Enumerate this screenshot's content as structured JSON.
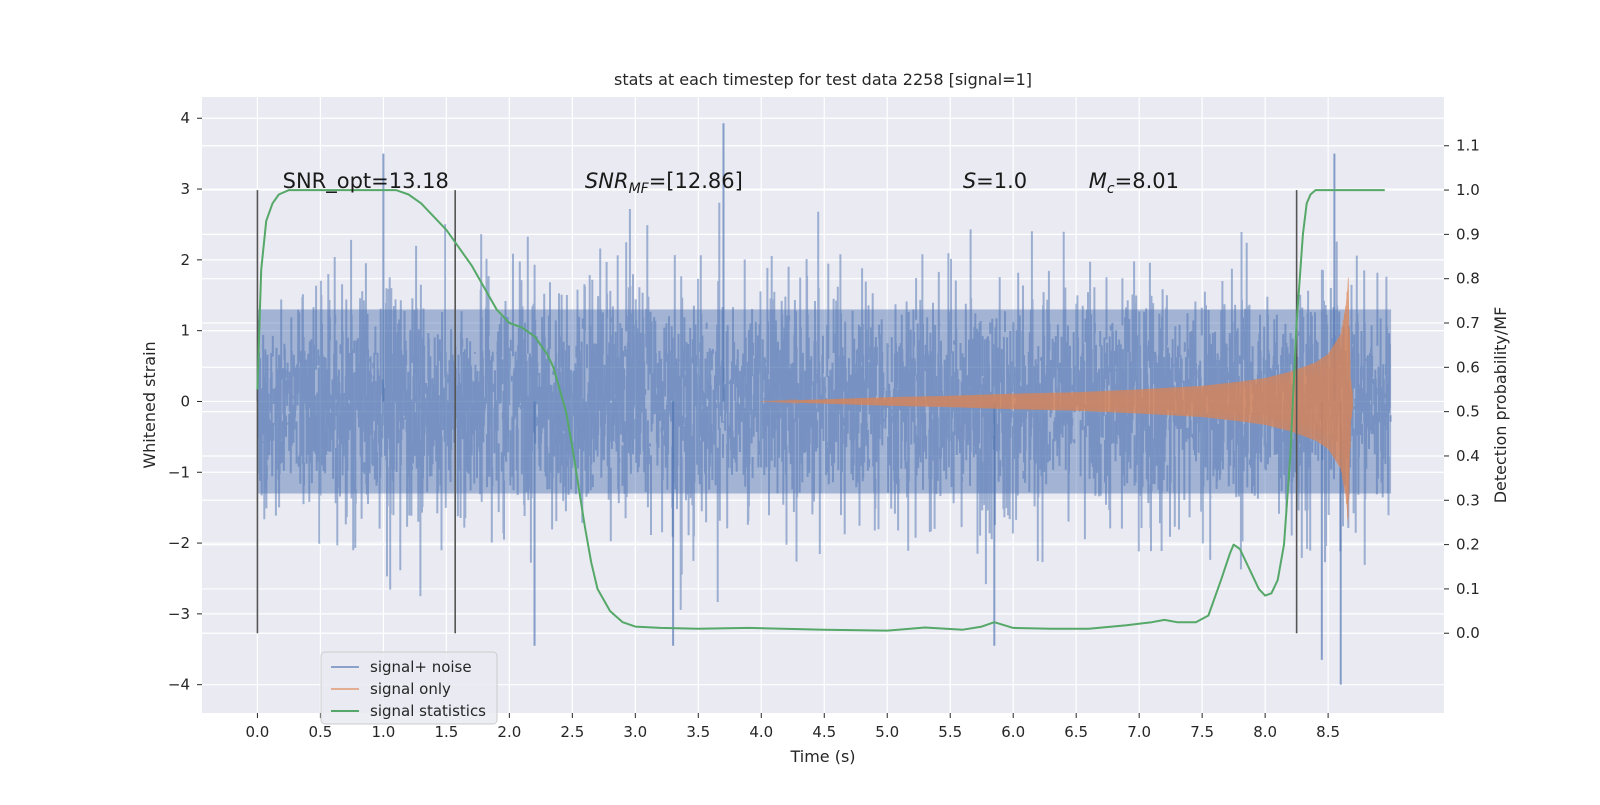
{
  "chart_data": {
    "type": "line",
    "title": "stats at each timestep for test data 2258 [signal=1]",
    "xlabel": "Time (s)",
    "ylabel": "Whitened strain",
    "y2label": "Detection probability/MF",
    "xlim": [
      -0.44,
      9.42
    ],
    "ylim": [
      -4.4,
      4.3
    ],
    "y2lim": [
      -0.18,
      1.21
    ],
    "grid": true,
    "x_ticks": [
      0.0,
      0.5,
      1.0,
      1.5,
      2.0,
      2.5,
      3.0,
      3.5,
      4.0,
      4.5,
      5.0,
      5.5,
      6.0,
      6.5,
      7.0,
      7.5,
      8.0,
      8.5
    ],
    "x_tick_labels": [
      "0.0",
      "0.5",
      "1.0",
      "1.5",
      "2.0",
      "2.5",
      "3.0",
      "3.5",
      "4.0",
      "4.5",
      "5.0",
      "5.5",
      "6.0",
      "6.5",
      "7.0",
      "7.5",
      "8.0",
      "8.5"
    ],
    "y_ticks": [
      4,
      3,
      2,
      1,
      0,
      -1,
      -2,
      -3,
      -4
    ],
    "y_tick_labels": [
      "4",
      "3",
      "2",
      "1",
      "0",
      "−1",
      "−2",
      "−3",
      "−4"
    ],
    "y2_ticks": [
      1.1,
      1.0,
      0.9,
      0.8,
      0.7,
      0.6,
      0.5,
      0.4,
      0.3,
      0.2,
      0.1,
      0.0
    ],
    "y2_tick_labels": [
      "1.1",
      "1.0",
      "0.9",
      "0.8",
      "0.7",
      "0.6",
      "0.5",
      "0.4",
      "0.3",
      "0.2",
      "0.1",
      "0.0"
    ],
    "vertical_markers": [
      0.0,
      1.57,
      8.25
    ],
    "vertical_marker_range": [
      0.0,
      1.0
    ],
    "annotations": [
      {
        "text": "SNR_opt=13.18",
        "x": 0.2,
        "y2": 1.0
      },
      {
        "text": "SNR",
        "sub": "MF",
        "rest": "=[12.86]",
        "x": 2.6,
        "y2": 1.0
      },
      {
        "text": "S",
        "rest": "=1.0",
        "x": 5.6,
        "y2": 1.0
      },
      {
        "text": "M",
        "sub": "c",
        "rest": "=8.01",
        "x": 6.6,
        "y2": 1.0
      }
    ],
    "series": [
      {
        "name": "signal+ noise",
        "color": "#4c72b0",
        "alpha": 0.5,
        "x_range": [
          0.0,
          9.0
        ],
        "typical_amplitude": 1.3,
        "peak_range": [
          -4.0,
          3.93
        ],
        "peaks": [
          [
            1.0,
            3.5
          ],
          [
            3.7,
            3.93
          ],
          [
            8.55,
            3.5
          ],
          [
            3.3,
            -3.45
          ],
          [
            2.2,
            -3.45
          ],
          [
            5.85,
            -3.45
          ],
          [
            8.6,
            -4.0
          ],
          [
            8.45,
            -3.65
          ]
        ]
      },
      {
        "name": "signal only",
        "color": "#dd8452",
        "alpha": 0.5,
        "x_range": [
          4.0,
          8.7
        ],
        "envelope": [
          [
            4.0,
            0.0
          ],
          [
            4.5,
            0.03
          ],
          [
            5.0,
            0.06
          ],
          [
            5.5,
            0.08
          ],
          [
            6.0,
            0.11
          ],
          [
            6.5,
            0.13
          ],
          [
            7.0,
            0.17
          ],
          [
            7.5,
            0.22
          ],
          [
            7.8,
            0.28
          ],
          [
            8.0,
            0.33
          ],
          [
            8.2,
            0.42
          ],
          [
            8.4,
            0.55
          ],
          [
            8.5,
            0.67
          ],
          [
            8.6,
            0.95
          ],
          [
            8.64,
            1.35
          ],
          [
            8.66,
            1.75
          ],
          [
            8.68,
            0.3
          ],
          [
            8.7,
            0.04
          ]
        ]
      },
      {
        "name": "signal statistics",
        "color": "#55a868",
        "axis": "right",
        "x": [
          0.0,
          0.03,
          0.07,
          0.12,
          0.17,
          0.25,
          0.4,
          0.6,
          0.9,
          1.1,
          1.2,
          1.3,
          1.4,
          1.5,
          1.6,
          1.7,
          1.8,
          1.9,
          2.0,
          2.1,
          2.2,
          2.3,
          2.35,
          2.4,
          2.45,
          2.5,
          2.55,
          2.6,
          2.65,
          2.7,
          2.8,
          2.9,
          3.0,
          3.2,
          3.5,
          3.9,
          4.5,
          5.0,
          5.3,
          5.6,
          5.75,
          5.85,
          6.0,
          6.3,
          6.6,
          6.9,
          7.1,
          7.2,
          7.3,
          7.45,
          7.55,
          7.65,
          7.72,
          7.75,
          7.8,
          7.9,
          7.95,
          8.0,
          8.05,
          8.1,
          8.15,
          8.2,
          8.25,
          8.3,
          8.33,
          8.36,
          8.4,
          8.5,
          8.7,
          8.95
        ],
        "y": [
          0.55,
          0.82,
          0.93,
          0.97,
          0.99,
          1.0,
          1.0,
          1.0,
          1.0,
          1.0,
          0.99,
          0.97,
          0.94,
          0.91,
          0.87,
          0.83,
          0.78,
          0.73,
          0.7,
          0.69,
          0.67,
          0.63,
          0.6,
          0.55,
          0.5,
          0.42,
          0.33,
          0.24,
          0.16,
          0.1,
          0.05,
          0.025,
          0.015,
          0.012,
          0.01,
          0.012,
          0.008,
          0.006,
          0.013,
          0.008,
          0.015,
          0.025,
          0.012,
          0.01,
          0.01,
          0.018,
          0.025,
          0.03,
          0.025,
          0.025,
          0.04,
          0.12,
          0.18,
          0.2,
          0.19,
          0.13,
          0.1,
          0.085,
          0.09,
          0.12,
          0.2,
          0.4,
          0.7,
          0.9,
          0.97,
          0.99,
          1.0,
          1.0,
          1.0,
          1.0
        ]
      }
    ],
    "legend_location": "lower-left",
    "legend_entries": [
      "signal+ noise",
      "signal only",
      "signal statistics"
    ]
  },
  "colors": {
    "axes_background": "#eaeaf2",
    "grid": "#ffffff",
    "noise": "#4c72b0",
    "signal": "#dd8452",
    "statistics": "#55a868",
    "marker": "#555555"
  }
}
